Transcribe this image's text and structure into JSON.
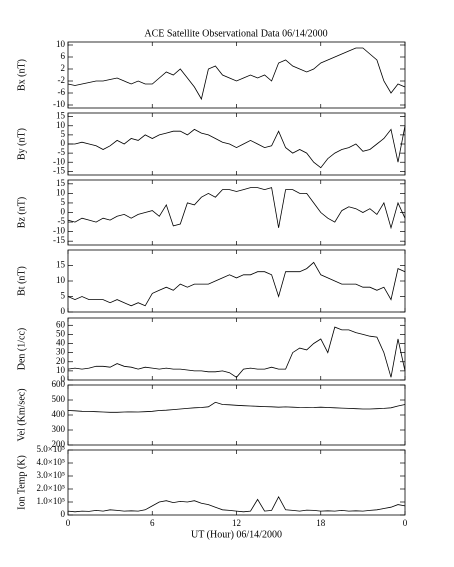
{
  "chart_data": [
    {
      "type": "line",
      "title": "ACE Satellite Observational Data   06/14/2000",
      "ylabel": "Bx (nT)",
      "color": "#000000",
      "x": [
        0,
        0.5,
        1,
        1.5,
        2,
        2.5,
        3,
        3.5,
        4,
        4.5,
        5,
        5.5,
        6,
        6.5,
        7,
        7.5,
        8,
        8.5,
        9,
        9.5,
        10,
        10.5,
        11,
        11.5,
        12,
        12.5,
        13,
        13.5,
        14,
        14.5,
        15,
        15.5,
        16,
        16.5,
        17,
        17.5,
        18,
        18.5,
        19,
        19.5,
        20,
        20.5,
        21,
        21.5,
        22,
        22.5,
        23,
        23.5,
        24
      ],
      "values": [
        -3,
        -3.5,
        -3,
        -2.5,
        -2,
        -2,
        -1.5,
        -1,
        -2,
        -3,
        -2,
        -3,
        -3,
        -1,
        1,
        0,
        2,
        -1,
        -4,
        -8,
        2,
        3,
        0,
        -1,
        -2,
        -1,
        0,
        -1,
        0,
        -2,
        4,
        5,
        3,
        2,
        1,
        2,
        4,
        5,
        6,
        7,
        8,
        9,
        9,
        7,
        5,
        -2,
        -6,
        -3,
        -4
      ],
      "xlim": [
        0,
        24
      ],
      "xticks": [
        0,
        6,
        12,
        18,
        {
          "value": 24,
          "label": "0"
        }
      ],
      "ylim": [
        -11,
        11
      ],
      "yticks": [
        -10,
        -6,
        -2,
        2,
        6,
        10
      ]
    },
    {
      "type": "line",
      "ylabel": "By (nT)",
      "color": "#000000",
      "x": [
        0,
        0.5,
        1,
        1.5,
        2,
        2.5,
        3,
        3.5,
        4,
        4.5,
        5,
        5.5,
        6,
        6.5,
        7,
        7.5,
        8,
        8.5,
        9,
        9.5,
        10,
        10.5,
        11,
        11.5,
        12,
        12.5,
        13,
        13.5,
        14,
        14.5,
        15,
        15.5,
        16,
        16.5,
        17,
        17.5,
        18,
        18.5,
        19,
        19.5,
        20,
        20.5,
        21,
        21.5,
        22,
        22.5,
        23,
        23.5,
        24
      ],
      "values": [
        0,
        0,
        1,
        0,
        -1,
        -3,
        -1,
        2,
        0,
        3,
        2,
        5,
        3,
        5,
        6,
        7,
        7,
        5,
        8,
        6,
        5,
        3,
        1,
        0,
        -2,
        0,
        2,
        0,
        -2,
        -1,
        7,
        -2,
        -5,
        -3,
        -5,
        -10,
        -13,
        -8,
        -5,
        -3,
        -2,
        0,
        -4,
        -3,
        0,
        3,
        8,
        -10,
        10
      ],
      "xlim": [
        0,
        24
      ],
      "xticks": [
        0,
        6,
        12,
        18,
        {
          "value": 24,
          "label": "0"
        }
      ],
      "ylim": [
        -17,
        17
      ],
      "yticks": [
        -15,
        -10,
        -5,
        0,
        5,
        10,
        15
      ]
    },
    {
      "type": "line",
      "ylabel": "Bz (nT)",
      "color": "#000000",
      "x": [
        0,
        0.5,
        1,
        1.5,
        2,
        2.5,
        3,
        3.5,
        4,
        4.5,
        5,
        5.5,
        6,
        6.5,
        7,
        7.5,
        8,
        8.5,
        9,
        9.5,
        10,
        10.5,
        11,
        11.5,
        12,
        12.5,
        13,
        13.5,
        14,
        14.5,
        15,
        15.5,
        16,
        16.5,
        17,
        17.5,
        18,
        18.5,
        19,
        19.5,
        20,
        20.5,
        21,
        21.5,
        22,
        22.5,
        23,
        23.5,
        24
      ],
      "values": [
        -4,
        -5,
        -3,
        -4,
        -5,
        -3,
        -4,
        -2,
        -1,
        -3,
        -1,
        0,
        1,
        -2,
        4,
        -7,
        -6,
        5,
        4,
        8,
        10,
        8,
        12,
        12,
        11,
        12,
        13,
        13,
        12,
        13,
        -8,
        12,
        12,
        10,
        10,
        5,
        0,
        -3,
        -5,
        1,
        3,
        2,
        0,
        2,
        -1,
        5,
        -8,
        5,
        -3
      ],
      "xlim": [
        0,
        24
      ],
      "xticks": [
        0,
        6,
        12,
        18,
        {
          "value": 24,
          "label": "0"
        }
      ],
      "ylim": [
        -17,
        17
      ],
      "yticks": [
        -15,
        -10,
        -5,
        0,
        5,
        10,
        15
      ]
    },
    {
      "type": "line",
      "ylabel": "Bt (nT)",
      "color": "#000000",
      "x": [
        0,
        0.5,
        1,
        1.5,
        2,
        2.5,
        3,
        3.5,
        4,
        4.5,
        5,
        5.5,
        6,
        6.5,
        7,
        7.5,
        8,
        8.5,
        9,
        9.5,
        10,
        10.5,
        11,
        11.5,
        12,
        12.5,
        13,
        13.5,
        14,
        14.5,
        15,
        15.5,
        16,
        16.5,
        17,
        17.5,
        18,
        18.5,
        19,
        19.5,
        20,
        20.5,
        21,
        21.5,
        22,
        22.5,
        23,
        23.5,
        24
      ],
      "values": [
        5,
        4,
        5,
        4,
        4,
        4,
        3,
        4,
        3,
        2,
        3,
        2,
        6,
        7,
        8,
        7,
        9,
        8,
        9,
        9,
        9,
        10,
        11,
        12,
        11,
        12,
        12,
        13,
        13,
        12,
        5,
        13,
        13,
        13,
        14,
        16,
        12,
        11,
        10,
        9,
        9,
        9,
        8,
        8,
        7,
        8,
        4,
        14,
        13
      ],
      "xlim": [
        0,
        24
      ],
      "xticks": [
        0,
        6,
        12,
        18,
        {
          "value": 24,
          "label": "0"
        }
      ],
      "ylim": [
        0,
        20
      ],
      "yticks": [
        0,
        5,
        10,
        15
      ]
    },
    {
      "type": "line",
      "ylabel": "Den (1/cc)",
      "color": "#000000",
      "x": [
        0,
        0.5,
        1,
        1.5,
        2,
        2.5,
        3,
        3.5,
        4,
        4.5,
        5,
        5.5,
        6,
        6.5,
        7,
        7.5,
        8,
        8.5,
        9,
        9.5,
        10,
        10.5,
        11,
        11.5,
        12,
        12.5,
        13,
        13.5,
        14,
        14.5,
        15,
        15.5,
        16,
        16.5,
        17,
        17.5,
        18,
        18.5,
        19,
        19.5,
        20,
        20.5,
        21,
        21.5,
        22,
        22.5,
        23,
        23.5,
        24
      ],
      "values": [
        12,
        13,
        12,
        13,
        15,
        15,
        14,
        18,
        15,
        14,
        12,
        14,
        13,
        12,
        13,
        12,
        12,
        11,
        10,
        10,
        9,
        9,
        10,
        8,
        3,
        12,
        13,
        12,
        12,
        14,
        12,
        12,
        30,
        35,
        33,
        40,
        45,
        30,
        58,
        55,
        55,
        52,
        50,
        48,
        47,
        30,
        3,
        45,
        10
      ],
      "xlim": [
        0,
        24
      ],
      "xticks": [
        0,
        6,
        12,
        18,
        {
          "value": 24,
          "label": "0"
        }
      ],
      "ylim": [
        0,
        68
      ],
      "yticks": [
        0,
        10,
        20,
        30,
        40,
        50,
        60
      ]
    },
    {
      "type": "line",
      "ylabel": "Vel (Km/sec)",
      "color": "#000000",
      "x": [
        0,
        0.5,
        1,
        1.5,
        2,
        2.5,
        3,
        3.5,
        4,
        4.5,
        5,
        5.5,
        6,
        6.5,
        7,
        7.5,
        8,
        8.5,
        9,
        9.5,
        10,
        10.5,
        11,
        11.5,
        12,
        12.5,
        13,
        13.5,
        14,
        14.5,
        15,
        15.5,
        16,
        16.5,
        17,
        17.5,
        18,
        18.5,
        19,
        19.5,
        20,
        20.5,
        21,
        21.5,
        22,
        22.5,
        23,
        23.5,
        24
      ],
      "values": [
        430,
        428,
        425,
        424,
        422,
        420,
        418,
        418,
        420,
        421,
        420,
        422,
        425,
        430,
        432,
        436,
        440,
        444,
        448,
        450,
        455,
        485,
        470,
        468,
        465,
        462,
        460,
        458,
        456,
        455,
        452,
        454,
        452,
        450,
        449,
        450,
        452,
        450,
        448,
        446,
        444,
        442,
        440,
        440,
        442,
        444,
        448,
        460,
        470
      ],
      "xlim": [
        0,
        24
      ],
      "xticks": [
        0,
        6,
        12,
        18,
        {
          "value": 24,
          "label": "0"
        }
      ],
      "ylim": [
        200,
        600
      ],
      "yticks": [
        200,
        300,
        400,
        500,
        600
      ]
    },
    {
      "type": "line",
      "ylabel": "Ion Temp (K)",
      "xlabel": "UT (Hour)   06/14/2000",
      "color": "#000000",
      "x": [
        0,
        0.5,
        1,
        1.5,
        2,
        2.5,
        3,
        3.5,
        4,
        4.5,
        5,
        5.5,
        6,
        6.5,
        7,
        7.5,
        8,
        8.5,
        9,
        9.5,
        10,
        10.5,
        11,
        11.5,
        12,
        12.5,
        13,
        13.5,
        14,
        14.5,
        15,
        15.5,
        16,
        16.5,
        17,
        17.5,
        18,
        18.5,
        19,
        19.5,
        20,
        20.5,
        21,
        21.5,
        22,
        22.5,
        23,
        23.5,
        24
      ],
      "values": [
        30000,
        25000,
        30000,
        28000,
        35000,
        30000,
        40000,
        35000,
        30000,
        32000,
        30000,
        40000,
        70000,
        100000,
        110000,
        95000,
        105000,
        100000,
        110000,
        90000,
        80000,
        60000,
        40000,
        35000,
        30000,
        25000,
        30000,
        120000,
        30000,
        35000,
        140000,
        40000,
        35000,
        30000,
        38000,
        35000,
        30000,
        32000,
        30000,
        35000,
        30000,
        32000,
        30000,
        35000,
        40000,
        50000,
        60000,
        80000,
        70000
      ],
      "xlim": [
        0,
        24
      ],
      "xticks": [
        0,
        6,
        12,
        18,
        {
          "value": 24,
          "label": "0"
        }
      ],
      "ylim": [
        0,
        500000
      ],
      "yticks": [
        0,
        {
          "value": 100000,
          "label": "1.0×10⁵"
        },
        {
          "value": 200000,
          "label": "2.0×10⁵"
        },
        {
          "value": 300000,
          "label": "3.0×10⁵"
        },
        {
          "value": 400000,
          "label": "4.0×10⁵"
        },
        {
          "value": 500000,
          "label": "5.0×10⁵"
        }
      ]
    }
  ]
}
